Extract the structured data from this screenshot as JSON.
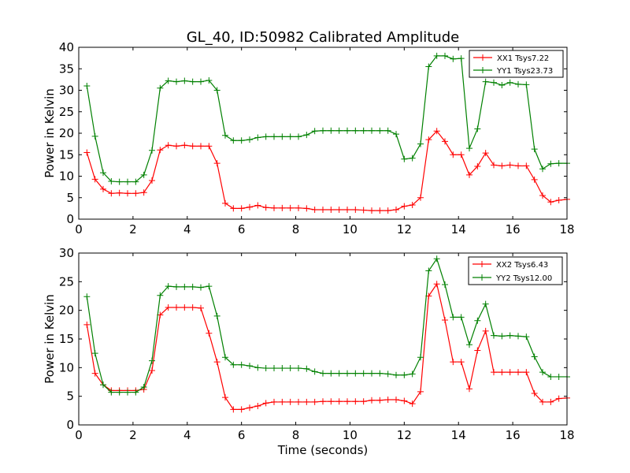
{
  "chart_data": {
    "type": "line",
    "title": "GL_40, ID:50982 Calibrated Amplitude",
    "xlabel": "Time (seconds)",
    "shared_x": [
      0.3,
      0.6,
      0.9,
      1.2,
      1.5,
      1.8,
      2.1,
      2.4,
      2.7,
      3.0,
      3.3,
      3.6,
      3.9,
      4.2,
      4.5,
      4.8,
      5.1,
      5.4,
      5.7,
      6.0,
      6.3,
      6.6,
      6.9,
      7.2,
      7.5,
      7.8,
      8.1,
      8.4,
      8.7,
      9.0,
      9.3,
      9.6,
      9.9,
      10.2,
      10.5,
      10.8,
      11.1,
      11.4,
      11.7,
      12.0,
      12.3,
      12.6,
      12.9,
      13.2,
      13.5,
      13.8,
      14.1,
      14.4,
      14.7,
      15.0,
      15.3,
      15.6,
      15.9,
      16.2,
      16.5,
      16.8,
      17.1,
      17.4,
      17.7,
      18.0
    ],
    "panels": [
      {
        "ylabel": "Power in Kelvin",
        "xlim": [
          0,
          18
        ],
        "ylim": [
          0,
          40
        ],
        "xticks": [
          0,
          2,
          4,
          6,
          8,
          10,
          12,
          14,
          16,
          18
        ],
        "yticks": [
          0,
          5,
          10,
          15,
          20,
          25,
          30,
          35,
          40
        ],
        "legend_position": "top-right",
        "series": [
          {
            "name": "XX1 Tsys7.22",
            "color": "#ff0000",
            "values": [
              15.5,
              9.3,
              7.0,
              6.0,
              6.1,
              6.0,
              6.0,
              6.2,
              9.0,
              16.1,
              17.2,
              17.0,
              17.2,
              17.0,
              17.0,
              17.0,
              13.0,
              3.7,
              2.5,
              2.5,
              2.8,
              3.2,
              2.7,
              2.6,
              2.6,
              2.6,
              2.6,
              2.5,
              2.2,
              2.2,
              2.2,
              2.2,
              2.2,
              2.2,
              2.1,
              2.0,
              2.0,
              2.0,
              2.2,
              3.0,
              3.3,
              5.0,
              18.5,
              20.5,
              18.1,
              15.0,
              15.0,
              10.3,
              12.3,
              15.4,
              12.6,
              12.4,
              12.6,
              12.4,
              12.4,
              9.2,
              5.5,
              4.0,
              4.4,
              4.6
            ]
          },
          {
            "name": "YY1 Tsys23.73",
            "color": "#008000",
            "values": [
              31.0,
              19.3,
              10.8,
              8.8,
              8.7,
              8.7,
              8.7,
              10.3,
              16.0,
              30.5,
              32.2,
              32.0,
              32.2,
              32.0,
              32.0,
              32.3,
              30.0,
              19.5,
              18.3,
              18.3,
              18.5,
              19.0,
              19.2,
              19.2,
              19.2,
              19.2,
              19.2,
              19.6,
              20.5,
              20.6,
              20.6,
              20.6,
              20.6,
              20.6,
              20.6,
              20.6,
              20.6,
              20.6,
              19.8,
              14.0,
              14.2,
              17.5,
              35.5,
              38.0,
              38.0,
              37.3,
              37.4,
              16.5,
              21.0,
              32.0,
              31.8,
              31.2,
              31.8,
              31.4,
              31.3,
              16.3,
              11.7,
              12.9,
              13.0,
              13.0
            ]
          }
        ]
      },
      {
        "ylabel": "Power in Kelvin",
        "xlim": [
          0,
          18
        ],
        "ylim": [
          0,
          30
        ],
        "xticks": [
          0,
          2,
          4,
          6,
          8,
          10,
          12,
          14,
          16,
          18
        ],
        "yticks": [
          0,
          5,
          10,
          15,
          20,
          25,
          30
        ],
        "legend_position": "top-right",
        "series": [
          {
            "name": "XX2 Tsys6.43",
            "color": "#ff0000",
            "values": [
              17.5,
              9.0,
              7.0,
              6.0,
              6.0,
              6.0,
              6.0,
              6.2,
              9.5,
              19.2,
              20.5,
              20.5,
              20.5,
              20.5,
              20.4,
              16.0,
              11.0,
              4.8,
              2.7,
              2.7,
              3.0,
              3.3,
              3.8,
              4.0,
              4.0,
              4.0,
              4.0,
              4.0,
              4.0,
              4.1,
              4.1,
              4.1,
              4.1,
              4.1,
              4.1,
              4.3,
              4.3,
              4.4,
              4.4,
              4.2,
              3.7,
              5.8,
              22.5,
              24.6,
              18.3,
              11.0,
              11.0,
              6.3,
              13.0,
              16.4,
              9.2,
              9.2,
              9.2,
              9.2,
              9.2,
              5.5,
              4.0,
              4.0,
              4.6,
              4.7
            ]
          },
          {
            "name": "YY2 Tsys12.00",
            "color": "#008000",
            "values": [
              22.4,
              12.5,
              7.0,
              5.7,
              5.7,
              5.7,
              5.7,
              6.6,
              11.2,
              22.6,
              24.2,
              24.1,
              24.1,
              24.1,
              24.0,
              24.2,
              19.0,
              11.8,
              10.5,
              10.5,
              10.3,
              10.0,
              9.9,
              9.9,
              9.9,
              9.9,
              9.9,
              9.8,
              9.3,
              9.0,
              9.0,
              9.0,
              9.0,
              9.0,
              9.0,
              9.0,
              9.0,
              8.9,
              8.7,
              8.7,
              8.9,
              11.8,
              26.9,
              29.0,
              24.5,
              18.8,
              18.8,
              14.0,
              18.2,
              21.1,
              15.6,
              15.5,
              15.6,
              15.5,
              15.4,
              11.9,
              9.2,
              8.4,
              8.4,
              8.4
            ]
          }
        ]
      }
    ]
  }
}
